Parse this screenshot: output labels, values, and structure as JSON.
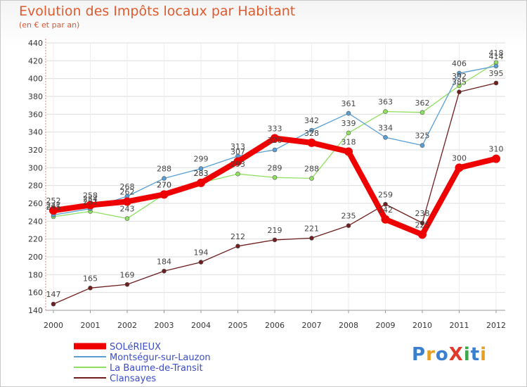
{
  "chart_data": {
    "type": "line",
    "title": "Evolution des Impôts locaux par Habitant",
    "subtitle": "(en € et par an)",
    "xlabel": "",
    "ylabel": "",
    "categories": [
      "2000",
      "2001",
      "2002",
      "2003",
      "2004",
      "2005",
      "2006",
      "2007",
      "2008",
      "2009",
      "2010",
      "2011",
      "2012"
    ],
    "ylim": [
      140,
      440
    ],
    "yticks": [
      140,
      160,
      180,
      200,
      220,
      240,
      260,
      280,
      300,
      320,
      340,
      360,
      380,
      400,
      420,
      440
    ],
    "grid": true,
    "legend_position": "bottom-left",
    "series": [
      {
        "name": "SOLéRIEUX",
        "color": "#ee0000",
        "values": [
          252,
          258,
          262,
          270,
          283,
          307,
          333,
          328,
          318,
          242,
          225,
          300,
          310
        ]
      },
      {
        "name": "Montségur-sur-Lauzon",
        "color": "#5a9fd4",
        "values": [
          247,
          254,
          268,
          288,
          299,
          313,
          320,
          342,
          361,
          334,
          325,
          406,
          414
        ]
      },
      {
        "name": "La Baume-de-Transit",
        "color": "#90e060",
        "values": [
          245,
          251,
          243,
          270,
          283,
          293,
          289,
          288,
          339,
          363,
          362,
          392,
          418
        ]
      },
      {
        "name": "Clansayes",
        "color": "#6e1e1e",
        "values": [
          147,
          165,
          169,
          184,
          194,
          212,
          219,
          221,
          235,
          259,
          238,
          385,
          395
        ]
      }
    ]
  },
  "logo_text": "ProXiti",
  "logo_letters": [
    {
      "ch": "P",
      "color": "#3a7fd0"
    },
    {
      "ch": "r",
      "color": "#e8a020"
    },
    {
      "ch": "o",
      "color": "#3a7fd0"
    },
    {
      "ch": "X",
      "color": "#e03a2a"
    },
    {
      "ch": "i",
      "color": "#3aa84a"
    },
    {
      "ch": "t",
      "color": "#3a7fd0"
    },
    {
      "ch": "i",
      "color": "#e8a020"
    }
  ]
}
